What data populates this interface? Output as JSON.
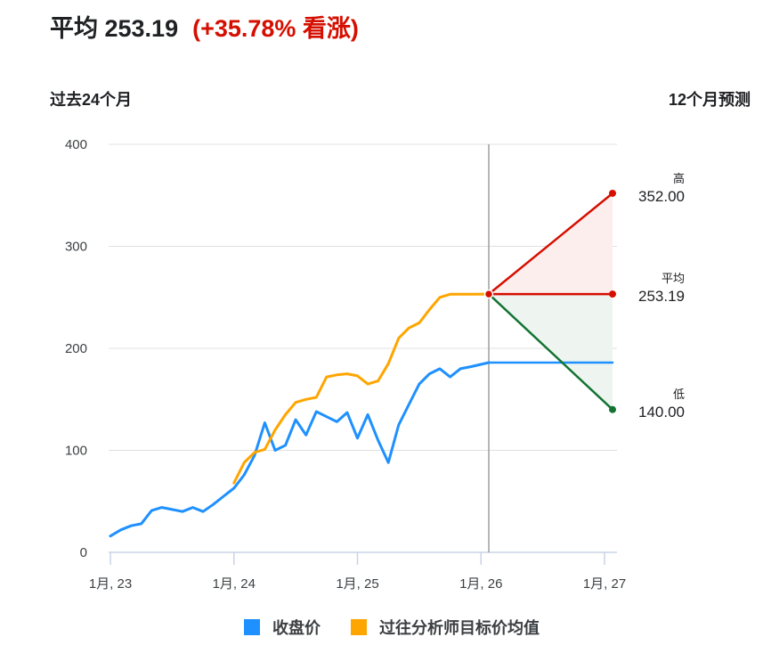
{
  "header": {
    "average_label": "平均 253.19",
    "change_label": "(+35.78% 看涨)"
  },
  "subtitles": {
    "left": "过去24个月",
    "right": "12个月预测"
  },
  "forecast": {
    "high_label": "高",
    "high_value": "352.00",
    "avg_label": "平均",
    "avg_value": "253.19",
    "low_label": "低",
    "low_value": "140.00"
  },
  "legend": {
    "items": [
      {
        "label": "收盘价",
        "color": "#1e90ff"
      },
      {
        "label": "过往分析师目标价均值",
        "color": "#ffa500"
      }
    ]
  },
  "colors": {
    "close": "#1e90ff",
    "target": "#ffa500",
    "high": "#d50f00",
    "low": "#137333",
    "high_fill": "#fdeeee",
    "low_fill": "#eef5f0",
    "grid": "#e0e0e0",
    "today_line": "#9e9e9e"
  },
  "chart_data": {
    "type": "line",
    "title": "平均 253.19 (+35.78% 看涨)",
    "xlabel": "",
    "ylabel": "",
    "ylim": [
      0,
      400
    ],
    "yticks": [
      0,
      100,
      200,
      300,
      400
    ],
    "xticks": [
      "1月, 23",
      "1月, 24",
      "1月, 25",
      "1月, 26",
      "1月, 27"
    ],
    "grid": true,
    "legend_position": "bottom",
    "left_section_label": "过去24个月",
    "right_section_label": "12个月预测",
    "series": [
      {
        "name": "收盘价",
        "color": "#1e90ff",
        "x": [
          "2023-01",
          "2023-02",
          "2023-03",
          "2023-04",
          "2023-05",
          "2023-06",
          "2023-07",
          "2023-08",
          "2023-09",
          "2023-10",
          "2023-11",
          "2023-12",
          "2024-01",
          "2024-02",
          "2024-03",
          "2024-04",
          "2024-05",
          "2024-06",
          "2024-07",
          "2024-08",
          "2024-09",
          "2024-10",
          "2024-11",
          "2024-12",
          "2025-01",
          "2025-02",
          "2025-03",
          "2025-04",
          "2025-05",
          "2025-06",
          "2025-07",
          "2025-08",
          "2025-09",
          "2025-10",
          "2025-11",
          "2025-12",
          "2026-01"
        ],
        "values": [
          16,
          22,
          26,
          28,
          41,
          44,
          42,
          40,
          44,
          40,
          47,
          55,
          63,
          76,
          95,
          127,
          100,
          105,
          130,
          115,
          138,
          133,
          128,
          137,
          112,
          135,
          110,
          88,
          125,
          145,
          165,
          175,
          180,
          172,
          180,
          182,
          186
        ]
      },
      {
        "name": "过往分析师目标价均值",
        "color": "#ffa500",
        "x": [
          "2024-01",
          "2024-02",
          "2024-03",
          "2024-04",
          "2024-05",
          "2024-06",
          "2024-07",
          "2024-08",
          "2024-09",
          "2024-10",
          "2024-11",
          "2024-12",
          "2025-01",
          "2025-02",
          "2025-03",
          "2025-04",
          "2025-05",
          "2025-06",
          "2025-07",
          "2025-08",
          "2025-09",
          "2025-10",
          "2025-11",
          "2025-12",
          "2026-01"
        ],
        "values": [
          68,
          88,
          98,
          101,
          120,
          135,
          147,
          150,
          152,
          172,
          174,
          175,
          173,
          165,
          168,
          185,
          210,
          220,
          225,
          238,
          250,
          253,
          253,
          253,
          253.19
        ]
      },
      {
        "name": "高",
        "color": "#d50f00",
        "x": [
          "2026-01",
          "2027-01"
        ],
        "values": [
          253.19,
          352.0
        ]
      },
      {
        "name": "平均",
        "color": "#d50f00",
        "x": [
          "2026-01",
          "2027-01"
        ],
        "values": [
          253.19,
          253.19
        ]
      },
      {
        "name": "低",
        "color": "#137333",
        "x": [
          "2026-01",
          "2027-01"
        ],
        "values": [
          253.19,
          140.0
        ]
      },
      {
        "name": "收盘价 (forecast flat)",
        "color": "#1e90ff",
        "x": [
          "2026-01",
          "2027-01"
        ],
        "values": [
          186,
          186
        ]
      }
    ],
    "annotations": [
      {
        "label": "高",
        "value": 352.0
      },
      {
        "label": "平均",
        "value": 253.19
      },
      {
        "label": "低",
        "value": 140.0
      }
    ]
  }
}
